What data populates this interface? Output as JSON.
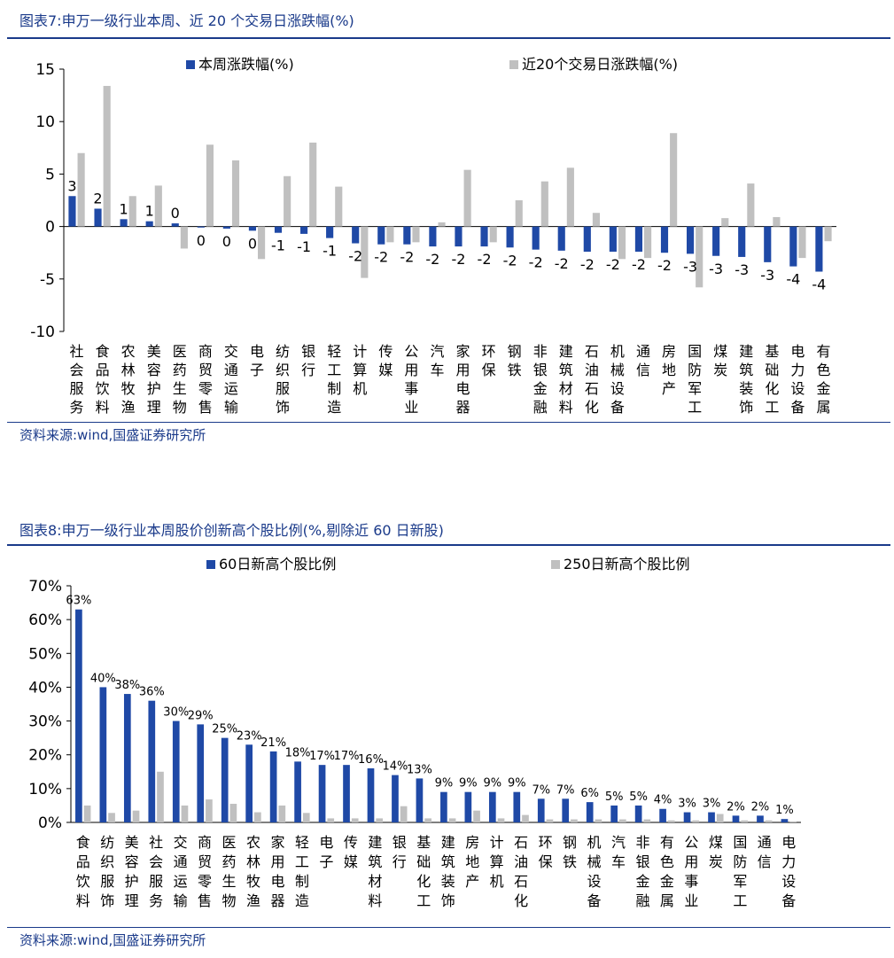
{
  "figure7": {
    "title": "图表7:申万一级行业本周、近 20 个交易日涨跌幅(%)",
    "source": "资料来源:wind,国盛证券研究所"
  },
  "figure8": {
    "title": "图表8:申万一级行业本周股价创新高个股比例(%,剔除近 60 日新股)",
    "source": "资料来源:wind,国盛证券研究所"
  },
  "colors": {
    "primary": "#1f49a6",
    "secondary": "#c0c0c0",
    "title": "#1a3a8a"
  },
  "chart_data": [
    {
      "type": "bar",
      "categories": [
        "社会服务",
        "食品饮料",
        "农林牧渔",
        "美容护理",
        "医药生物",
        "商贸零售",
        "交通运输",
        "电子",
        "纺织服饰",
        "银行",
        "轻工制造",
        "计算机",
        "传媒",
        "公用事业",
        "汽车",
        "家用电器",
        "环保",
        "钢铁",
        "非银金融",
        "建筑材料",
        "石油石化",
        "机械设备",
        "通信",
        "房地产",
        "国防军工",
        "煤炭",
        "建筑装饰",
        "基础化工",
        "电力设备",
        "有色金属"
      ],
      "series": [
        {
          "name": "本周涨跌幅(%)",
          "values": [
            2.9,
            1.7,
            0.7,
            0.5,
            0.3,
            -0.1,
            -0.2,
            -0.4,
            -0.6,
            -0.7,
            -1.1,
            -1.6,
            -1.7,
            -1.7,
            -1.9,
            -1.9,
            -1.9,
            -2.0,
            -2.2,
            -2.3,
            -2.4,
            -2.4,
            -2.4,
            -2.5,
            -2.6,
            -2.8,
            -2.9,
            -3.4,
            -3.8,
            -4.3
          ],
          "labels": [
            "3",
            "2",
            "1",
            "1",
            "0",
            "0",
            "0",
            "0",
            "-1",
            "-1",
            "-1",
            "-2",
            "-2",
            "-2",
            "-2",
            "-2",
            "-2",
            "-2",
            "-2",
            "-2",
            "-2",
            "-2",
            "-2",
            "-2",
            "-3",
            "-3",
            "-3",
            "-3",
            "-4",
            "-4"
          ]
        },
        {
          "name": "近20个交易日涨跌幅(%)",
          "values": [
            7.0,
            13.4,
            2.9,
            3.9,
            -2.1,
            7.8,
            6.3,
            -3.1,
            4.8,
            8.0,
            3.8,
            -4.9,
            -1.5,
            -1.5,
            0.4,
            5.4,
            -1.5,
            2.5,
            4.3,
            5.6,
            1.3,
            -3.1,
            -3.0,
            8.9,
            -5.8,
            0.8,
            4.1,
            0.9,
            -3.0,
            -1.4
          ]
        }
      ],
      "ylim": [
        -10,
        15
      ],
      "yticks": [
        "-10",
        "-5",
        "0",
        "5",
        "10",
        "15"
      ],
      "ytick_values": [
        -10,
        -5,
        0,
        5,
        10,
        15
      ],
      "legend": "top"
    },
    {
      "type": "bar",
      "categories": [
        "食品饮料",
        "纺织服饰",
        "美容护理",
        "社会服务",
        "交通运输",
        "商贸零售",
        "医药生物",
        "农林牧渔",
        "家用电器",
        "轻工制造",
        "电子",
        "传媒",
        "建筑材料",
        "银行",
        "基础化工",
        "建筑装饰",
        "房地产",
        "计算机",
        "石油石化",
        "环保",
        "钢铁",
        "机械设备",
        "汽车",
        "非银金融",
        "有色金属",
        "公用事业",
        "煤炭",
        "国防军工",
        "通信",
        "电力设备"
      ],
      "series": [
        {
          "name": "60日新高个股比例",
          "values": [
            63,
            40,
            38,
            36,
            30,
            29,
            25,
            23,
            21,
            18,
            17,
            17,
            16,
            14,
            13,
            9,
            9,
            9,
            9,
            7,
            7,
            6,
            5,
            5,
            4,
            3,
            3,
            2,
            2,
            1
          ],
          "labels": [
            "63%",
            "40%",
            "38%",
            "36%",
            "30%",
            "29%",
            "25%",
            "23%",
            "21%",
            "18%",
            "17%",
            "17%",
            "16%",
            "14%",
            "13%",
            "9%",
            "9%",
            "9%",
            "9%",
            "7%",
            "7%",
            "6%",
            "5%",
            "5%",
            "4%",
            "3%",
            "3%",
            "2%",
            "2%",
            "1%"
          ]
        },
        {
          "name": "250日新高个股比例",
          "values": [
            5,
            2.8,
            3.5,
            15,
            5,
            6.8,
            5.5,
            3,
            5,
            2.8,
            1.2,
            1.2,
            1.2,
            4.8,
            1.2,
            1.2,
            3.5,
            1.2,
            2.2,
            0.9,
            0.9,
            0.9,
            0.9,
            0.9,
            0.6,
            0.6,
            2.5,
            0.6,
            0.6,
            0.3
          ]
        }
      ],
      "ylim": [
        0,
        70
      ],
      "yticks": [
        "0%",
        "10%",
        "20%",
        "30%",
        "40%",
        "50%",
        "60%",
        "70%"
      ],
      "ytick_values": [
        0,
        10,
        20,
        30,
        40,
        50,
        60,
        70
      ],
      "legend": "top"
    }
  ]
}
